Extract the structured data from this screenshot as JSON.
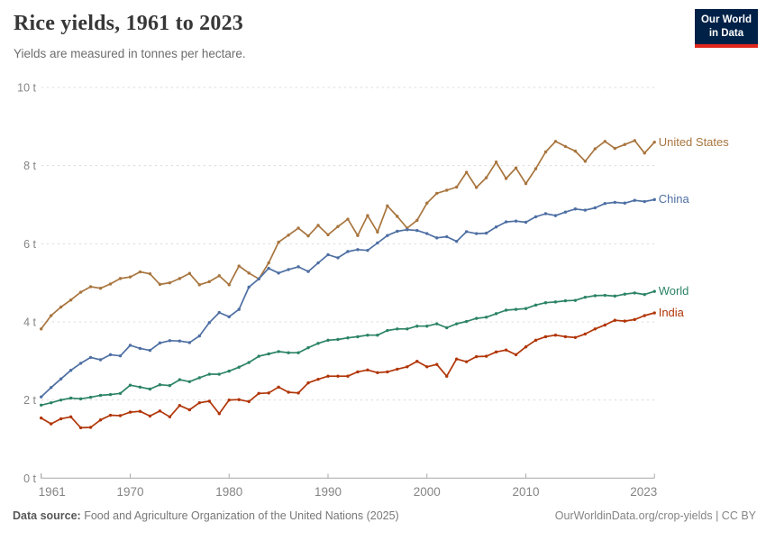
{
  "header": {
    "title": "Rice yields, 1961 to 2023",
    "subtitle": "Yields are measured in tonnes per hectare.",
    "logo_line1": "Our World",
    "logo_line2": "in Data",
    "logo_bg_color": "#002147",
    "logo_accent_color": "#e0261c"
  },
  "footer": {
    "source_label": "Data source:",
    "source_text": " Food and Agriculture Organization of the United Nations (2025)",
    "right_text": "OurWorldinData.org/crop-yields | CC BY"
  },
  "chart_data": {
    "type": "line",
    "title": "Rice yields, 1961 to 2023",
    "ylabel": "tonnes per hectare",
    "xlabel": "",
    "ylim": [
      0,
      10
    ],
    "grid": "dashed-horizontal",
    "legend_position": "right-of-line-ends",
    "yticks": [
      {
        "v": 0,
        "label": "0 t"
      },
      {
        "v": 2,
        "label": "2 t"
      },
      {
        "v": 4,
        "label": "4 t"
      },
      {
        "v": 6,
        "label": "6 t"
      },
      {
        "v": 8,
        "label": "8 t"
      },
      {
        "v": 10,
        "label": "10 t"
      }
    ],
    "xticks": [
      1961,
      1970,
      1980,
      1990,
      2000,
      2010,
      2023
    ],
    "years": [
      1961,
      1962,
      1963,
      1964,
      1965,
      1966,
      1967,
      1968,
      1969,
      1970,
      1971,
      1972,
      1973,
      1974,
      1975,
      1976,
      1977,
      1978,
      1979,
      1980,
      1981,
      1982,
      1983,
      1984,
      1985,
      1986,
      1987,
      1988,
      1989,
      1990,
      1991,
      1992,
      1993,
      1994,
      1995,
      1996,
      1997,
      1998,
      1999,
      2000,
      2001,
      2002,
      2003,
      2004,
      2005,
      2006,
      2007,
      2008,
      2009,
      2010,
      2011,
      2012,
      2013,
      2014,
      2015,
      2016,
      2017,
      2018,
      2019,
      2020,
      2021,
      2022,
      2023
    ],
    "series": [
      {
        "name": "United States",
        "color": "#A8753E",
        "values": [
          3.82,
          4.16,
          4.38,
          4.56,
          4.76,
          4.9,
          4.86,
          4.97,
          5.11,
          5.15,
          5.28,
          5.23,
          4.96,
          5.0,
          5.11,
          5.24,
          4.95,
          5.03,
          5.18,
          4.95,
          5.43,
          5.25,
          5.1,
          5.51,
          6.04,
          6.22,
          6.4,
          6.2,
          6.47,
          6.23,
          6.44,
          6.63,
          6.21,
          6.72,
          6.3,
          6.97,
          6.7,
          6.4,
          6.6,
          7.04,
          7.29,
          7.37,
          7.45,
          7.83,
          7.44,
          7.69,
          8.09,
          7.67,
          7.94,
          7.54,
          7.92,
          8.35,
          8.62,
          8.49,
          8.37,
          8.11,
          8.43,
          8.62,
          8.44,
          8.54,
          8.64,
          8.32,
          8.6
        ]
      },
      {
        "name": "China",
        "color": "#4E6FA3",
        "values": [
          2.08,
          2.32,
          2.54,
          2.76,
          2.94,
          3.09,
          3.03,
          3.16,
          3.13,
          3.4,
          3.32,
          3.27,
          3.46,
          3.52,
          3.51,
          3.47,
          3.64,
          3.98,
          4.24,
          4.13,
          4.32,
          4.89,
          5.1,
          5.37,
          5.25,
          5.34,
          5.41,
          5.29,
          5.51,
          5.72,
          5.64,
          5.8,
          5.85,
          5.83,
          6.02,
          6.21,
          6.32,
          6.36,
          6.34,
          6.26,
          6.15,
          6.18,
          6.06,
          6.31,
          6.26,
          6.27,
          6.43,
          6.56,
          6.58,
          6.55,
          6.69,
          6.77,
          6.72,
          6.81,
          6.89,
          6.86,
          6.92,
          7.03,
          7.06,
          7.04,
          7.11,
          7.08,
          7.13
        ]
      },
      {
        "name": "World",
        "color": "#2C8465",
        "values": [
          1.87,
          1.93,
          2.0,
          2.05,
          2.03,
          2.07,
          2.12,
          2.14,
          2.17,
          2.38,
          2.33,
          2.28,
          2.39,
          2.37,
          2.52,
          2.47,
          2.57,
          2.66,
          2.66,
          2.74,
          2.84,
          2.96,
          3.12,
          3.18,
          3.24,
          3.21,
          3.21,
          3.34,
          3.45,
          3.53,
          3.55,
          3.59,
          3.62,
          3.66,
          3.66,
          3.78,
          3.82,
          3.82,
          3.89,
          3.89,
          3.95,
          3.85,
          3.95,
          4.01,
          4.09,
          4.12,
          4.21,
          4.3,
          4.32,
          4.34,
          4.43,
          4.49,
          4.51,
          4.54,
          4.55,
          4.63,
          4.67,
          4.68,
          4.66,
          4.71,
          4.74,
          4.7,
          4.78
        ]
      },
      {
        "name": "India",
        "color": "#B13507",
        "values": [
          1.54,
          1.39,
          1.52,
          1.57,
          1.29,
          1.3,
          1.49,
          1.61,
          1.6,
          1.69,
          1.71,
          1.59,
          1.72,
          1.57,
          1.86,
          1.75,
          1.93,
          1.97,
          1.65,
          2.0,
          2.01,
          1.96,
          2.17,
          2.18,
          2.33,
          2.2,
          2.18,
          2.44,
          2.53,
          2.61,
          2.61,
          2.61,
          2.72,
          2.77,
          2.7,
          2.72,
          2.79,
          2.85,
          2.99,
          2.85,
          2.91,
          2.61,
          3.05,
          2.98,
          3.11,
          3.12,
          3.23,
          3.28,
          3.16,
          3.36,
          3.53,
          3.62,
          3.66,
          3.62,
          3.6,
          3.69,
          3.82,
          3.92,
          4.04,
          4.02,
          4.06,
          4.16,
          4.23
        ]
      }
    ],
    "style": {
      "grid_color": "#dcdcdc",
      "axis_color": "#a8a8a8",
      "tick_label_color": "#858585"
    }
  }
}
